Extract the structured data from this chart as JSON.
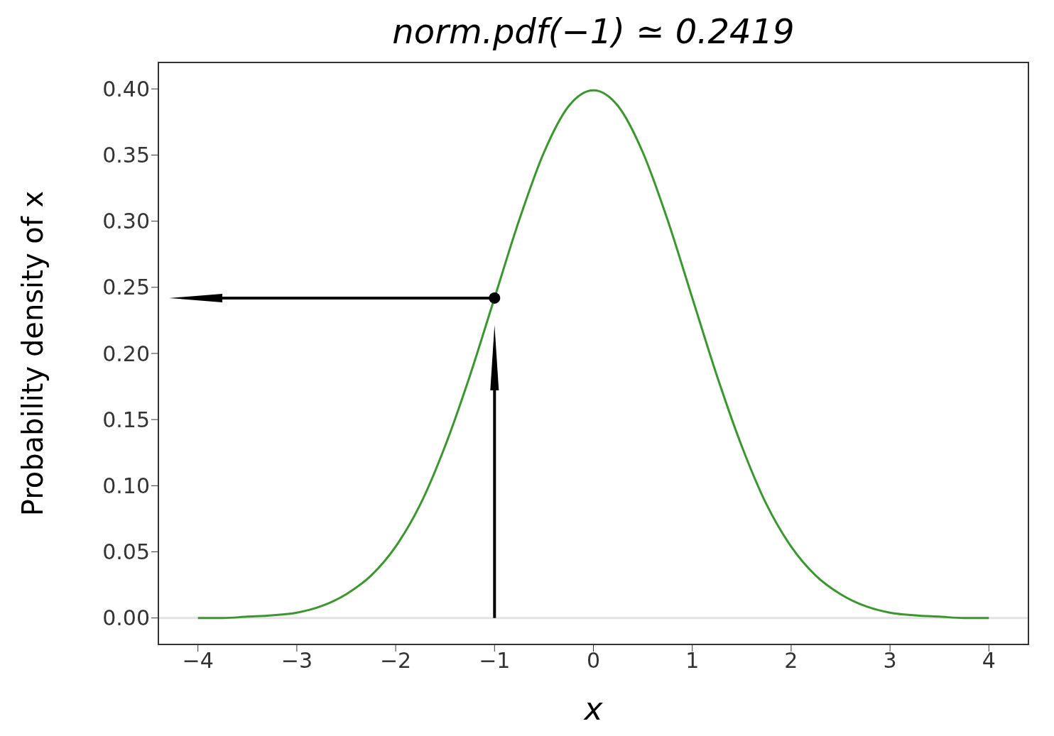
{
  "chart_data": {
    "type": "line",
    "title": "norm.pdf(−1) ≃ 0.2419",
    "xlabel": "x",
    "ylabel": "Probability density of x",
    "xlim": [
      -4.4,
      4.4
    ],
    "ylim": [
      -0.02,
      0.42
    ],
    "xticks": [
      {
        "value": -4,
        "label": "−4"
      },
      {
        "value": -3,
        "label": "−3"
      },
      {
        "value": -2,
        "label": "−2"
      },
      {
        "value": -1,
        "label": "−1"
      },
      0,
      1,
      2,
      3,
      4
    ],
    "yticks": [
      {
        "value": 0,
        "label": "0.00"
      },
      {
        "value": 0.05,
        "label": "0.05"
      },
      {
        "value": 0.1,
        "label": "0.10"
      },
      {
        "value": 0.15,
        "label": "0.15"
      },
      {
        "value": 0.2,
        "label": "0.20"
      },
      {
        "value": 0.25,
        "label": "0.25"
      },
      {
        "value": 0.3,
        "label": "0.30"
      },
      {
        "value": 0.35,
        "label": "0.35"
      },
      {
        "value": 0.4,
        "label": "0.40"
      }
    ],
    "ref_lines": [
      {
        "axis": "y",
        "value": 0,
        "color": "#e3e3e3"
      }
    ],
    "series": [
      {
        "color": "#3a962e",
        "x": [
          -4,
          -3.75,
          -3.5,
          -3.25,
          -3,
          -2.75,
          -2.5,
          -2.25,
          -2,
          -1.75,
          -1.5,
          -1.25,
          -1,
          -0.75,
          -0.5,
          -0.25,
          0,
          0.25,
          0.5,
          0.75,
          1,
          1.25,
          1.5,
          1.75,
          2,
          2.25,
          2.5,
          2.75,
          3,
          3.25,
          3.5,
          3.75,
          4
        ],
        "values": [
          0.0,
          0.0,
          0.001,
          0.002,
          0.004,
          0.009,
          0.018,
          0.032,
          0.054,
          0.086,
          0.13,
          0.183,
          0.242,
          0.301,
          0.352,
          0.387,
          0.399,
          0.387,
          0.352,
          0.301,
          0.242,
          0.183,
          0.13,
          0.086,
          0.054,
          0.032,
          0.018,
          0.009,
          0.004,
          0.002,
          0.001,
          0.0,
          0.0
        ]
      },
      {
        "type": "scatter",
        "color": "#000000",
        "marker": "circle",
        "x": [
          -1
        ],
        "values": [
          0.2419
        ]
      }
    ]
  }
}
